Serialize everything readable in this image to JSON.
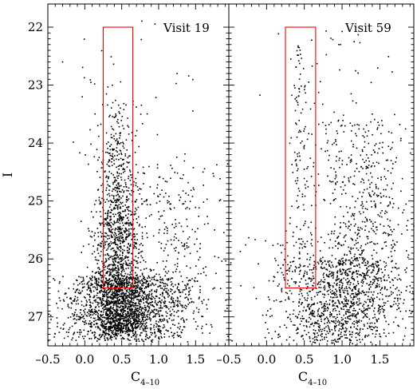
{
  "chart_data": [
    {
      "type": "scatter",
      "panel_label": "Visit 19",
      "ylabel": "I",
      "xlabel_main": "C",
      "xlabel_sub": "4–10",
      "xlim": [
        -0.5,
        1.95
      ],
      "ylim": [
        27.5,
        21.6
      ],
      "y_inverted": true,
      "x_ticks": [
        -0.5,
        0.0,
        0.5,
        1.0,
        1.5
      ],
      "x_tick_labels": [
        "–0.5",
        "0.0",
        "0.5",
        "1.0",
        "1.5"
      ],
      "y_ticks": [
        22,
        23,
        24,
        25,
        26,
        27
      ],
      "y_tick_labels": [
        "22",
        "23",
        "24",
        "25",
        "26",
        "27"
      ],
      "selection_box": {
        "x": [
          0.25,
          0.65
        ],
        "y": [
          22.0,
          26.5
        ]
      },
      "points_description": "dense red giant branch sequence near C≈0.4–0.5 from I≈23 to I≈27, broad clump at I≈26.5–27.2",
      "sample_points": [
        {
          "x": 0.42,
          "y": 23.5
        },
        {
          "x": 0.45,
          "y": 24.0
        },
        {
          "x": 0.44,
          "y": 24.5
        },
        {
          "x": 0.43,
          "y": 25.0
        },
        {
          "x": 0.41,
          "y": 25.5
        },
        {
          "x": 0.4,
          "y": 26.0
        },
        {
          "x": 0.45,
          "y": 26.5
        },
        {
          "x": 0.5,
          "y": 27.0
        },
        {
          "x": -0.3,
          "y": 22.6
        },
        {
          "x": 1.25,
          "y": 22.8
        },
        {
          "x": 1.6,
          "y": 24.5
        }
      ]
    },
    {
      "type": "scatter",
      "panel_label": "Visit 59",
      "xlabel_main": "C",
      "xlabel_sub": "4–10",
      "xlim": [
        -0.5,
        1.95
      ],
      "ylim": [
        27.5,
        21.6
      ],
      "y_inverted": true,
      "x_ticks": [
        -0.5,
        0.0,
        0.5,
        1.0,
        1.5
      ],
      "x_tick_labels": [
        "–0.5",
        "0.0",
        "0.5",
        "1.0",
        "1.5"
      ],
      "y_ticks": [
        22,
        23,
        24,
        25,
        26,
        27
      ],
      "selection_box": {
        "x": [
          0.25,
          0.65
        ],
        "y": [
          22.0,
          26.5
        ]
      },
      "points_description": "sparse sequence; broad redder clump near C≈0.8–1.6 at I≈26–27.2, scattered points up to I≈22.5",
      "sample_points": [
        {
          "x": 0.45,
          "y": 24.0
        },
        {
          "x": 0.4,
          "y": 25.0
        },
        {
          "x": 1.0,
          "y": 26.5
        },
        {
          "x": 1.2,
          "y": 26.0
        },
        {
          "x": 0.9,
          "y": 27.0
        },
        {
          "x": 1.5,
          "y": 24.0
        },
        {
          "x": 1.4,
          "y": 23.5
        },
        {
          "x": 0.98,
          "y": 22.3
        }
      ]
    }
  ]
}
